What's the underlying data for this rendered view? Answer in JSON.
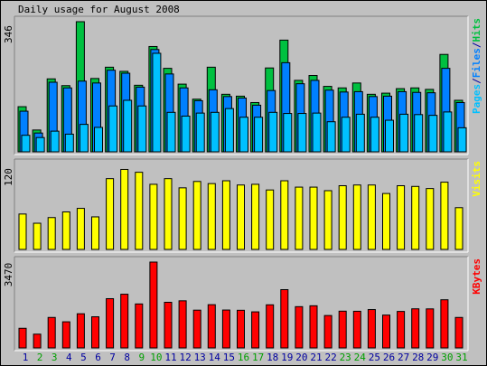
{
  "chart_data": {
    "type": "bar",
    "title": "Daily usage for August 2008",
    "categories": [
      "1",
      "2",
      "3",
      "4",
      "5",
      "6",
      "7",
      "8",
      "9",
      "10",
      "11",
      "12",
      "13",
      "14",
      "15",
      "16",
      "17",
      "18",
      "19",
      "20",
      "21",
      "22",
      "23",
      "24",
      "25",
      "26",
      "27",
      "28",
      "29",
      "30",
      "31"
    ],
    "weekend_days": [
      "2",
      "3",
      "9",
      "10",
      "16",
      "17",
      "23",
      "24",
      "30",
      "31"
    ],
    "colors": {
      "hits": "#00c040",
      "files": "#0080ff",
      "pages": "#00c0ff",
      "visits": "#ffff00",
      "kbytes": "#ff0000",
      "weekday_label": "#0000a0",
      "weekend_label": "#00a000"
    },
    "panels": [
      {
        "id": "hits-files-pages",
        "ymax_label": "346",
        "ymax": 346,
        "legend": [
          {
            "text": "Pages",
            "color": "#00c0ff"
          },
          {
            "text": "/",
            "color": "#0000a0"
          },
          {
            "text": "Files",
            "color": "#0080ff"
          },
          {
            "text": "/",
            "color": "#0000a0"
          },
          {
            "text": "Hits",
            "color": "#00c040"
          }
        ],
        "series": [
          {
            "name": "Hits",
            "color": "#00c040",
            "values": [
              120,
              58,
              194,
              176,
              346,
              195,
              225,
              214,
              177,
              280,
              222,
              180,
              140,
              225,
              153,
              148,
              131,
              223,
              297,
              190,
              203,
              174,
              170,
              183,
              153,
              156,
              168,
              170,
              166,
              259,
              137
            ]
          },
          {
            "name": "Files",
            "color": "#0080ff",
            "values": [
              108,
              50,
              185,
              170,
              188,
              183,
              217,
              209,
              172,
              272,
              207,
              170,
              136,
              165,
              147,
              143,
              124,
              163,
              237,
              181,
              190,
              164,
              159,
              160,
              147,
              148,
              160,
              158,
              157,
              222,
              131
            ]
          },
          {
            "name": "Pages",
            "color": "#00c0ff",
            "values": [
              44,
              38,
              55,
              47,
              73,
              65,
              122,
              137,
              122,
              262,
              105,
              95,
              103,
              105,
              115,
              92,
              92,
              105,
              102,
              102,
              103,
              80,
              92,
              100,
              92,
              84,
              100,
              99,
              97,
              106,
              64
            ]
          }
        ]
      },
      {
        "id": "visits",
        "ymax_label": "120",
        "ymax": 120,
        "legend": [
          {
            "text": "Visits",
            "color": "#ffff00"
          }
        ],
        "series": [
          {
            "name": "Visits",
            "color": "#ffff00",
            "values": [
              50,
              37,
              45,
              53,
              58,
              46,
              100,
              113,
              109,
              92,
              100,
              87,
              96,
              93,
              97,
              91,
              92,
              84,
              97,
              88,
              88,
              83,
              90,
              91,
              91,
              79,
              90,
              89,
              86,
              95,
              59
            ]
          }
        ]
      },
      {
        "id": "kbytes",
        "ymax_label": "3470",
        "ymax": 3470,
        "legend": [
          {
            "text": "KBytes",
            "color": "#ff0000"
          }
        ],
        "series": [
          {
            "name": "KBytes",
            "color": "#ff0000",
            "values": [
              794,
              557,
              1232,
              1056,
              1381,
              1259,
              1991,
              2171,
              1778,
              3470,
              1845,
              1905,
              1527,
              1748,
              1532,
              1522,
              1458,
              1743,
              2356,
              1668,
              1704,
              1310,
              1486,
              1482,
              1551,
              1328,
              1475,
              1581,
              1578,
              1947,
              1232
            ]
          }
        ]
      }
    ],
    "grid": false,
    "legend_placement": "right, vertical"
  }
}
